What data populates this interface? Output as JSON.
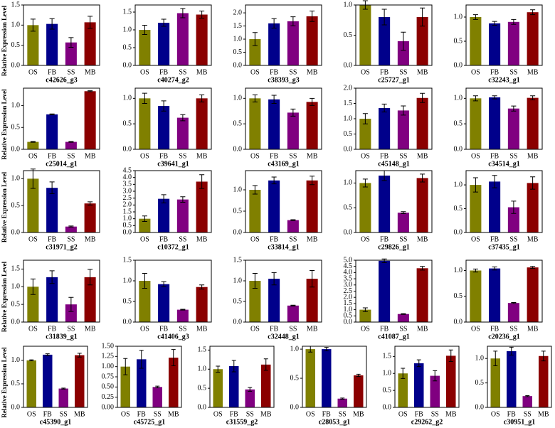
{
  "chart_data": [
    {
      "type": "bar",
      "title": "c42626_g3",
      "ylabel": "Relative Expression Level",
      "categories": [
        "OS",
        "FB",
        "SS",
        "MB"
      ],
      "values": [
        1.0,
        1.03,
        0.57,
        1.07
      ],
      "errors": [
        0.15,
        0.13,
        0.12,
        0.15
      ],
      "colors": [
        "#808000",
        "#00008b",
        "#800080",
        "#8b0000"
      ],
      "ylim": [
        0,
        1.5
      ],
      "yticks": [
        {
          "value": 0,
          "label": "0.0"
        },
        0.5,
        {
          "value": 1,
          "label": "1.0"
        },
        1.5
      ]
    },
    {
      "type": "bar",
      "title": "c40274_g2",
      "categories": [
        "OS",
        "FB",
        "SS",
        "MB"
      ],
      "values": [
        1.0,
        1.2,
        1.47,
        1.43
      ],
      "errors": [
        0.13,
        0.1,
        0.13,
        0.1
      ],
      "colors": [
        "#808000",
        "#00008b",
        "#800080",
        "#8b0000"
      ],
      "ylim": [
        0,
        1.7
      ],
      "yticks": [
        {
          "value": 0,
          "label": "0.0"
        },
        0.5,
        {
          "value": 1,
          "label": "1.0"
        },
        1.5
      ]
    },
    {
      "type": "bar",
      "title": "c38393_g3",
      "categories": [
        "OS",
        "FB",
        "SS",
        "MB"
      ],
      "values": [
        1.0,
        1.6,
        1.68,
        1.87
      ],
      "errors": [
        0.25,
        0.18,
        0.17,
        0.2
      ],
      "colors": [
        "#808000",
        "#00008b",
        "#800080",
        "#8b0000"
      ],
      "ylim": [
        0,
        2.3
      ],
      "yticks": [
        {
          "value": 0,
          "label": "0.0"
        },
        0.5,
        {
          "value": 1,
          "label": "1.0"
        },
        1.5,
        {
          "value": 2,
          "label": "2.0"
        }
      ]
    },
    {
      "type": "bar",
      "title": "c25727_g1",
      "categories": [
        "OS",
        "FB",
        "SS",
        "MB"
      ],
      "values": [
        1.0,
        0.8,
        0.4,
        0.8
      ],
      "errors": [
        0.07,
        0.13,
        0.15,
        0.15
      ],
      "colors": [
        "#808000",
        "#00008b",
        "#800080",
        "#8b0000"
      ],
      "ylim": [
        0,
        1.0
      ],
      "yticks": [
        {
          "value": 0,
          "label": "0.0"
        },
        0.5,
        {
          "value": 1,
          "label": "1.0"
        }
      ]
    },
    {
      "type": "bar",
      "title": "c32243_g1",
      "categories": [
        "OS",
        "FB",
        "SS",
        "MB"
      ],
      "values": [
        1.0,
        0.87,
        0.9,
        1.1
      ],
      "errors": [
        0.05,
        0.04,
        0.05,
        0.05
      ],
      "colors": [
        "#808000",
        "#00008b",
        "#800080",
        "#8b0000"
      ],
      "ylim": [
        0,
        1.25
      ],
      "yticks": [
        {
          "value": 0,
          "label": "0.0"
        },
        0.5,
        {
          "value": 1,
          "label": "1.0"
        }
      ]
    },
    {
      "type": "bar",
      "title": "c25014_g1",
      "ylabel": "Relative Expression Level",
      "categories": [
        "OS",
        "FB",
        "SS",
        "MB"
      ],
      "values": [
        0.17,
        0.8,
        0.17,
        1.33
      ],
      "errors": [
        0.01,
        0.01,
        0.01,
        0.01
      ],
      "colors": [
        "#808000",
        "#00008b",
        "#800080",
        "#8b0000"
      ],
      "ylim": [
        0,
        1.4
      ],
      "yticks": [
        {
          "value": 0,
          "label": "0.0"
        },
        0.5,
        {
          "value": 1,
          "label": "1.0"
        }
      ]
    },
    {
      "type": "bar",
      "title": "c39641_g1",
      "categories": [
        "OS",
        "FB",
        "SS",
        "MB"
      ],
      "values": [
        1.0,
        0.85,
        0.62,
        1.0
      ],
      "errors": [
        0.1,
        0.1,
        0.06,
        0.07
      ],
      "colors": [
        "#808000",
        "#00008b",
        "#800080",
        "#8b0000"
      ],
      "ylim": [
        0,
        1.2
      ],
      "yticks": [
        {
          "value": 0,
          "label": "0.0"
        },
        0.5,
        {
          "value": 1,
          "label": "1.0"
        }
      ]
    },
    {
      "type": "bar",
      "title": "c43169_g1",
      "categories": [
        "OS",
        "FB",
        "SS",
        "MB"
      ],
      "values": [
        1.0,
        0.98,
        0.72,
        0.93
      ],
      "errors": [
        0.07,
        0.08,
        0.07,
        0.07
      ],
      "colors": [
        "#808000",
        "#00008b",
        "#800080",
        "#8b0000"
      ],
      "ylim": [
        0,
        1.2
      ],
      "yticks": [
        {
          "value": 0,
          "label": "0.0"
        },
        0.5,
        {
          "value": 1,
          "label": "1.0"
        }
      ]
    },
    {
      "type": "bar",
      "title": "c45148_g1",
      "categories": [
        "OS",
        "FB",
        "SS",
        "MB"
      ],
      "values": [
        1.0,
        1.35,
        1.27,
        1.68
      ],
      "errors": [
        0.17,
        0.13,
        0.15,
        0.15
      ],
      "colors": [
        "#808000",
        "#00008b",
        "#800080",
        "#8b0000"
      ],
      "ylim": [
        0,
        2.0
      ],
      "yticks": [
        {
          "value": 0,
          "label": "0.0"
        },
        0.5,
        {
          "value": 1,
          "label": "1.0"
        },
        1.5,
        {
          "value": 2,
          "label": "2.0"
        }
      ]
    },
    {
      "type": "bar",
      "title": "c34514_g1",
      "categories": [
        "OS",
        "FB",
        "SS",
        "MB"
      ],
      "values": [
        1.0,
        1.02,
        0.8,
        1.01
      ],
      "errors": [
        0.05,
        0.03,
        0.05,
        0.04
      ],
      "colors": [
        "#808000",
        "#00008b",
        "#800080",
        "#8b0000"
      ],
      "ylim": [
        0,
        1.2
      ],
      "yticks": [
        {
          "value": 0,
          "label": "0.0"
        },
        0.5,
        {
          "value": 1,
          "label": "1.0"
        }
      ]
    },
    {
      "type": "bar",
      "title": "c31971_g2",
      "ylabel": "Relative Expression Level",
      "categories": [
        "OS",
        "FB",
        "SS",
        "MB"
      ],
      "values": [
        1.0,
        0.83,
        0.11,
        0.54
      ],
      "errors": [
        0.18,
        0.11,
        0.01,
        0.03
      ],
      "colors": [
        "#808000",
        "#00008b",
        "#800080",
        "#8b0000"
      ],
      "ylim": [
        0,
        1.15
      ],
      "yticks": [
        {
          "value": 0,
          "label": "0.0"
        },
        0.5,
        {
          "value": 1,
          "label": "1.0"
        }
      ]
    },
    {
      "type": "bar",
      "title": "c10372_g1",
      "categories": [
        "OS",
        "FB",
        "SS",
        "MB"
      ],
      "values": [
        1.0,
        2.45,
        2.4,
        3.7
      ],
      "errors": [
        0.2,
        0.3,
        0.2,
        0.5
      ],
      "colors": [
        "#808000",
        "#00008b",
        "#800080",
        "#8b0000"
      ],
      "ylim": [
        0,
        4.5
      ],
      "yticks": [
        {
          "value": 0,
          "label": "0.0"
        },
        0.5,
        {
          "value": 1,
          "label": "1.0"
        },
        1.5,
        {
          "value": 2,
          "label": "2.0"
        },
        2.5,
        {
          "value": 3,
          "label": "3.0"
        },
        3.5,
        {
          "value": 4,
          "label": "4.0"
        },
        4.5
      ]
    },
    {
      "type": "bar",
      "title": "c33814_g1",
      "categories": [
        "OS",
        "FB",
        "SS",
        "MB"
      ],
      "values": [
        1.0,
        1.22,
        0.29,
        1.22
      ],
      "errors": [
        0.1,
        0.08,
        0.01,
        0.1
      ],
      "colors": [
        "#808000",
        "#00008b",
        "#800080",
        "#8b0000"
      ],
      "ylim": [
        0,
        1.45
      ],
      "yticks": [
        {
          "value": 0,
          "label": "0.0"
        },
        0.5,
        {
          "value": 1,
          "label": "1.0"
        }
      ]
    },
    {
      "type": "bar",
      "title": "c29826_g1",
      "categories": [
        "OS",
        "FB",
        "SS",
        "MB"
      ],
      "values": [
        1.0,
        1.15,
        0.4,
        1.1
      ],
      "errors": [
        0.08,
        0.1,
        0.02,
        0.08
      ],
      "colors": [
        "#808000",
        "#00008b",
        "#800080",
        "#8b0000"
      ],
      "ylim": [
        0,
        1.25
      ],
      "yticks": [
        {
          "value": 0,
          "label": "0.0"
        },
        0.5,
        {
          "value": 1,
          "label": "1.0"
        }
      ]
    },
    {
      "type": "bar",
      "title": "c37435_g1",
      "categories": [
        "OS",
        "FB",
        "SS",
        "MB"
      ],
      "values": [
        1.0,
        1.07,
        0.53,
        1.04
      ],
      "errors": [
        0.15,
        0.13,
        0.13,
        0.13
      ],
      "colors": [
        "#808000",
        "#00008b",
        "#800080",
        "#8b0000"
      ],
      "ylim": [
        0,
        1.3
      ],
      "yticks": [
        {
          "value": 0,
          "label": "0.0"
        },
        0.5,
        {
          "value": 1,
          "label": "1.0"
        }
      ]
    },
    {
      "type": "bar",
      "title": "c31839_g1",
      "ylabel": "Relative Expression Level",
      "categories": [
        "OS",
        "FB",
        "SS",
        "MB"
      ],
      "values": [
        1.0,
        1.27,
        0.5,
        1.27
      ],
      "errors": [
        0.22,
        0.18,
        0.2,
        0.22
      ],
      "colors": [
        "#808000",
        "#00008b",
        "#800080",
        "#8b0000"
      ],
      "ylim": [
        0,
        1.75
      ],
      "yticks": [
        {
          "value": 0,
          "label": "0.0"
        },
        0.5,
        {
          "value": 1,
          "label": "1.0"
        },
        1.5
      ]
    },
    {
      "type": "bar",
      "title": "c41406_g3",
      "categories": [
        "OS",
        "FB",
        "SS",
        "MB"
      ],
      "values": [
        1.0,
        0.92,
        0.3,
        0.85
      ],
      "errors": [
        0.18,
        0.06,
        0.01,
        0.05
      ],
      "colors": [
        "#808000",
        "#00008b",
        "#800080",
        "#8b0000"
      ],
      "ylim": [
        0,
        1.5
      ],
      "yticks": [
        {
          "value": 0,
          "label": "0.0"
        },
        0.5,
        {
          "value": 1,
          "label": "1.0"
        },
        1.5
      ]
    },
    {
      "type": "bar",
      "title": "c32448_g1",
      "categories": [
        "OS",
        "FB",
        "SS",
        "MB"
      ],
      "values": [
        1.0,
        1.05,
        0.4,
        1.05
      ],
      "errors": [
        0.18,
        0.15,
        0.01,
        0.2
      ],
      "colors": [
        "#808000",
        "#00008b",
        "#800080",
        "#8b0000"
      ],
      "ylim": [
        0,
        1.5
      ],
      "yticks": [
        {
          "value": 0,
          "label": "0.0"
        },
        0.5,
        {
          "value": 1,
          "label": "1.0"
        },
        1.5
      ]
    },
    {
      "type": "bar",
      "title": "c41087_g1",
      "categories": [
        "OS",
        "FB",
        "SS",
        "MB"
      ],
      "values": [
        1.0,
        4.95,
        0.65,
        4.35
      ],
      "errors": [
        0.15,
        0.15,
        0.03,
        0.15
      ],
      "colors": [
        "#808000",
        "#00008b",
        "#800080",
        "#8b0000"
      ],
      "ylim": [
        0,
        5.0
      ],
      "yticks": [
        {
          "value": 0,
          "label": "0.0"
        },
        0.5,
        {
          "value": 1,
          "label": "1.0"
        },
        1.5,
        {
          "value": 2,
          "label": "2.0"
        },
        2.5,
        {
          "value": 3,
          "label": "3.0"
        },
        3.5,
        {
          "value": 4,
          "label": "4.0"
        },
        4.5,
        {
          "value": 5,
          "label": "5.0"
        }
      ]
    },
    {
      "type": "bar",
      "title": "c20236_g1",
      "categories": [
        "OS",
        "FB",
        "SS",
        "MB"
      ],
      "values": [
        1.0,
        1.04,
        0.37,
        1.06
      ],
      "errors": [
        0.03,
        0.03,
        0.01,
        0.02
      ],
      "colors": [
        "#808000",
        "#00008b",
        "#800080",
        "#8b0000"
      ],
      "ylim": [
        0,
        1.2
      ],
      "yticks": [
        {
          "value": 0,
          "label": "0.0"
        },
        0.5,
        {
          "value": 1,
          "label": "1.0"
        }
      ]
    },
    {
      "type": "bar",
      "title": "c45390_g1",
      "ylabel": "Relative Expression Level",
      "categories": [
        "OS",
        "FB",
        "SS",
        "MB"
      ],
      "values": [
        1.0,
        1.12,
        0.4,
        1.11
      ],
      "errors": [
        0.01,
        0.02,
        0.01,
        0.04
      ],
      "colors": [
        "#808000",
        "#00008b",
        "#800080",
        "#8b0000"
      ],
      "ylim": [
        0,
        1.3
      ],
      "yticks": [
        {
          "value": 0,
          "label": "0.0"
        },
        0.5,
        {
          "value": 1,
          "label": "1.0"
        }
      ]
    },
    {
      "type": "bar",
      "title": "c45725_g1",
      "categories": [
        "OS",
        "FB",
        "SS",
        "MB"
      ],
      "values": [
        1.0,
        1.18,
        0.5,
        1.22
      ],
      "errors": [
        0.2,
        0.22,
        0.02,
        0.2
      ],
      "colors": [
        "#808000",
        "#00008b",
        "#800080",
        "#8b0000"
      ],
      "ylim": [
        0,
        1.5
      ],
      "yticks": [
        {
          "value": 0,
          "label": "0.00"
        },
        0.25,
        {
          "value": 0.5,
          "label": "0.50"
        },
        0.75,
        {
          "value": 1,
          "label": "1.00"
        },
        1.25,
        {
          "value": 1.5,
          "label": "1.50"
        }
      ]
    },
    {
      "type": "bar",
      "title": "c31559_g2",
      "categories": [
        "OS",
        "FB",
        "SS",
        "MB"
      ],
      "values": [
        1.0,
        1.08,
        0.47,
        1.12
      ],
      "errors": [
        0.08,
        0.15,
        0.05,
        0.15
      ],
      "colors": [
        "#808000",
        "#00008b",
        "#800080",
        "#8b0000"
      ],
      "ylim": [
        0,
        1.6
      ],
      "yticks": [
        {
          "value": 0,
          "label": "0.0"
        },
        0.5,
        {
          "value": 1,
          "label": "1.0"
        },
        1.5
      ]
    },
    {
      "type": "bar",
      "title": "c28053_g1",
      "categories": [
        "OS",
        "FB",
        "SS",
        "MB"
      ],
      "values": [
        1.0,
        1.0,
        0.15,
        0.55
      ],
      "errors": [
        0.05,
        0.03,
        0.01,
        0.02
      ],
      "colors": [
        "#808000",
        "#00008b",
        "#800080",
        "#8b0000"
      ],
      "ylim": [
        0,
        1.05
      ],
      "yticks": [
        {
          "value": 0,
          "label": "0.0"
        },
        0.5,
        {
          "value": 1,
          "label": "1.0"
        }
      ]
    },
    {
      "type": "bar",
      "title": "c29262_g2",
      "categories": [
        "OS",
        "FB",
        "SS",
        "MB"
      ],
      "values": [
        1.0,
        1.3,
        0.93,
        1.52
      ],
      "errors": [
        0.15,
        0.1,
        0.15,
        0.17
      ],
      "colors": [
        "#808000",
        "#00008b",
        "#800080",
        "#8b0000"
      ],
      "ylim": [
        0,
        1.8
      ],
      "yticks": [
        {
          "value": 0,
          "label": "0.0"
        },
        0.5,
        {
          "value": 1,
          "label": "1.0"
        },
        1.5
      ]
    },
    {
      "type": "bar",
      "title": "c30951_g1",
      "categories": [
        "OS",
        "FB",
        "SS",
        "MB"
      ],
      "values": [
        1.0,
        1.15,
        0.23,
        1.05
      ],
      "errors": [
        0.15,
        0.08,
        0.01,
        0.1
      ],
      "colors": [
        "#808000",
        "#00008b",
        "#800080",
        "#8b0000"
      ],
      "ylim": [
        0,
        1.25
      ],
      "yticks": [
        {
          "value": 0,
          "label": "0.0"
        },
        0.5,
        {
          "value": 1,
          "label": "1.0"
        }
      ]
    }
  ]
}
